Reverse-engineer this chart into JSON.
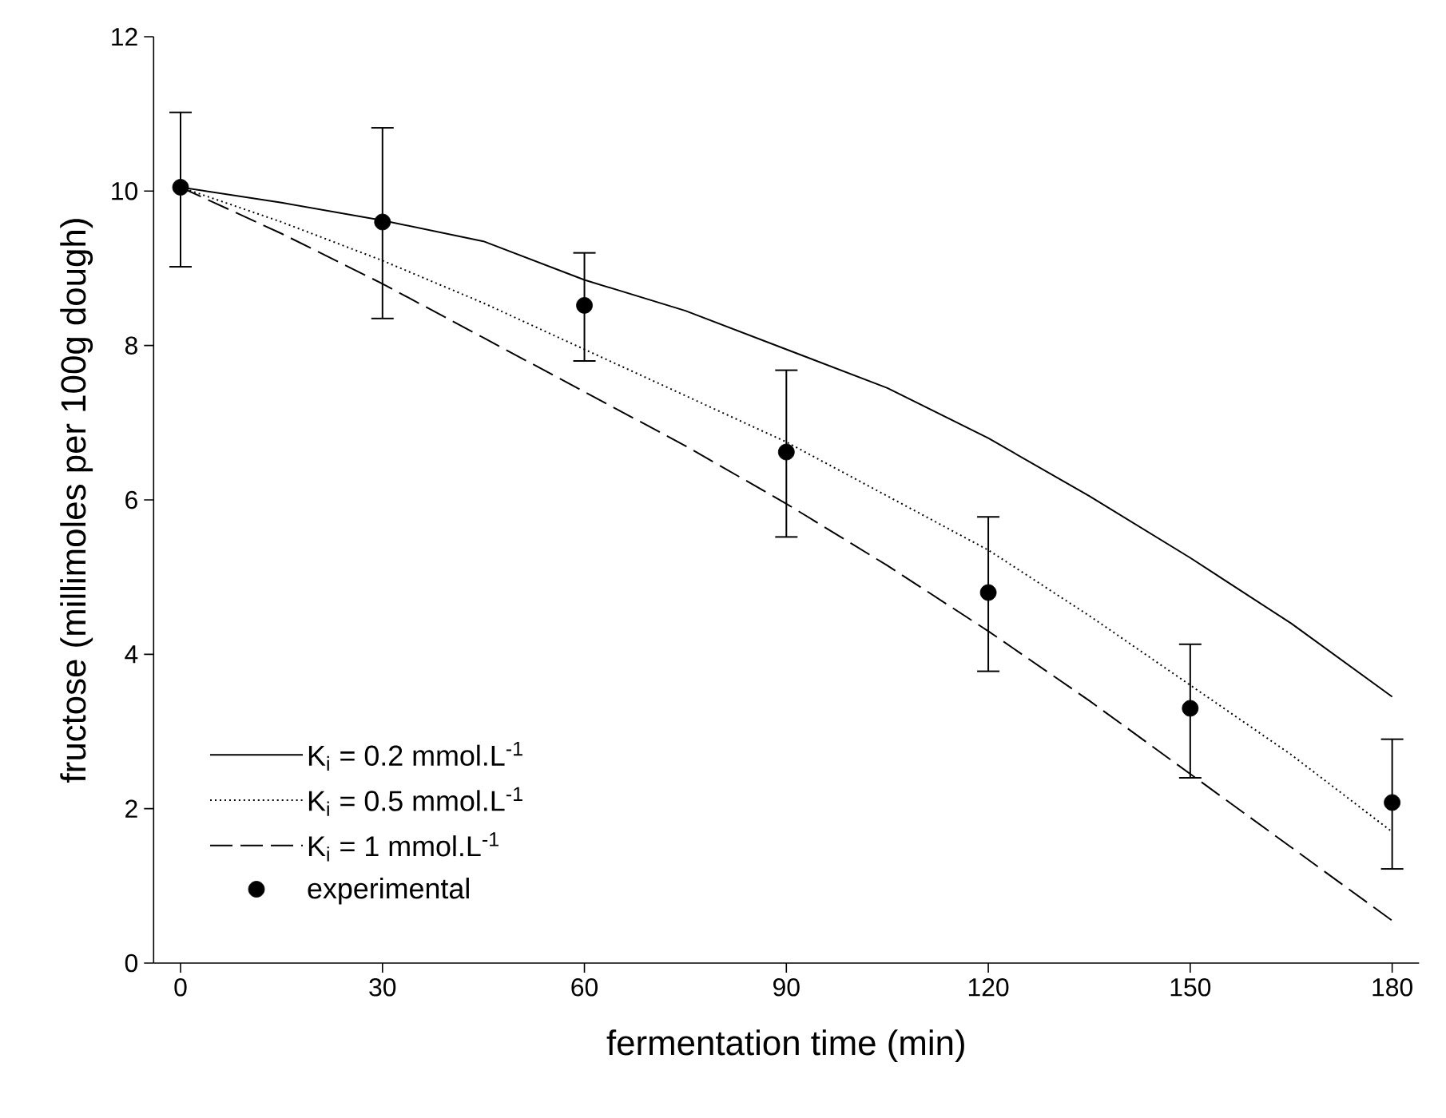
{
  "chart_data": {
    "type": "line",
    "xlabel": "fermentation time (min)",
    "ylabel": "fructose (millimoles per 100g dough)",
    "xlim": [
      -4,
      184
    ],
    "xticks": [
      0,
      30,
      60,
      90,
      120,
      150,
      180
    ],
    "ylim": [
      0,
      12
    ],
    "yticks": [
      0,
      2,
      4,
      6,
      8,
      10,
      12
    ],
    "legend": "bottom left",
    "grid": false,
    "series": [
      {
        "name": "K$_{i}$ = 0.2 mmol.L$^{-1}$",
        "type": "line",
        "line_style": "solid",
        "color": "#000000",
        "x": [
          0,
          15,
          30,
          45,
          60,
          75,
          90,
          105,
          120,
          135,
          150,
          165,
          180
        ],
        "values": [
          10.05,
          9.85,
          9.62,
          9.35,
          8.85,
          8.45,
          7.95,
          7.45,
          6.8,
          6.05,
          5.25,
          4.4,
          3.45
        ]
      },
      {
        "name": "K$_{i}$ = 0.5 mmol.L$^{-1}$",
        "type": "line",
        "line_style": "dotted",
        "color": "#000000",
        "x": [
          0,
          15,
          30,
          45,
          60,
          75,
          90,
          105,
          120,
          135,
          150,
          165,
          180
        ],
        "values": [
          10.05,
          9.6,
          9.1,
          8.55,
          7.95,
          7.35,
          6.75,
          6.05,
          5.35,
          4.5,
          3.6,
          2.7,
          1.7
        ]
      },
      {
        "name": "K$_{i}$ = 1 mmol.L$^{-1}$",
        "type": "line",
        "line_style": "dashed",
        "color": "#000000",
        "x": [
          0,
          15,
          30,
          45,
          60,
          75,
          90,
          105,
          120,
          135,
          150,
          165,
          180
        ],
        "values": [
          10.05,
          9.45,
          8.8,
          8.1,
          7.4,
          6.7,
          5.95,
          5.15,
          4.3,
          3.4,
          2.45,
          1.5,
          0.55
        ]
      },
      {
        "name": "experimental",
        "type": "scatter",
        "marker": "circle",
        "color": "#000000",
        "x": [
          0,
          30,
          60,
          90,
          120,
          150,
          180
        ],
        "values": [
          10.05,
          9.6,
          8.52,
          6.62,
          4.8,
          3.3,
          2.08
        ],
        "errors": [
          [
            9.02,
            11.02
          ],
          [
            8.35,
            10.82
          ],
          [
            7.8,
            9.2
          ],
          [
            5.52,
            7.68
          ],
          [
            3.78,
            5.78
          ],
          [
            2.4,
            4.13
          ],
          [
            1.22,
            2.9
          ]
        ]
      }
    ]
  }
}
